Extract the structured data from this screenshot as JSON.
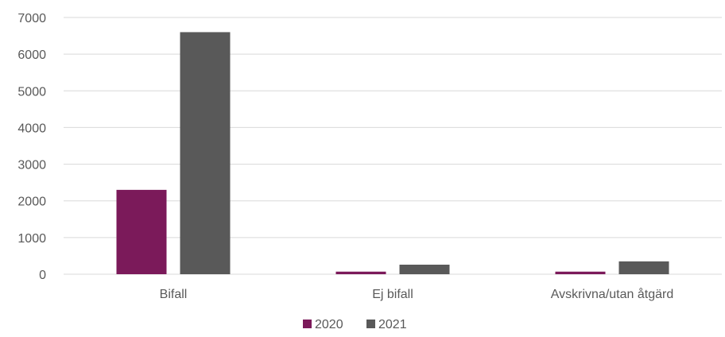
{
  "chart_data": {
    "type": "bar",
    "categories": [
      "Bifall",
      "Ej bifall",
      "Avskrivna/utan åtgärd"
    ],
    "series": [
      {
        "name": "2020",
        "values": [
          2300,
          70,
          70
        ],
        "color": "#7B1A5A"
      },
      {
        "name": "2021",
        "values": [
          6600,
          260,
          350
        ],
        "color": "#595959"
      }
    ],
    "title": "",
    "xlabel": "",
    "ylabel": "",
    "ylim": [
      0,
      7000
    ],
    "yticks": [
      "0",
      "1000",
      "2000",
      "3000",
      "4000",
      "5000",
      "6000",
      "7000"
    ],
    "grid": true,
    "legend": "bottom-center"
  }
}
